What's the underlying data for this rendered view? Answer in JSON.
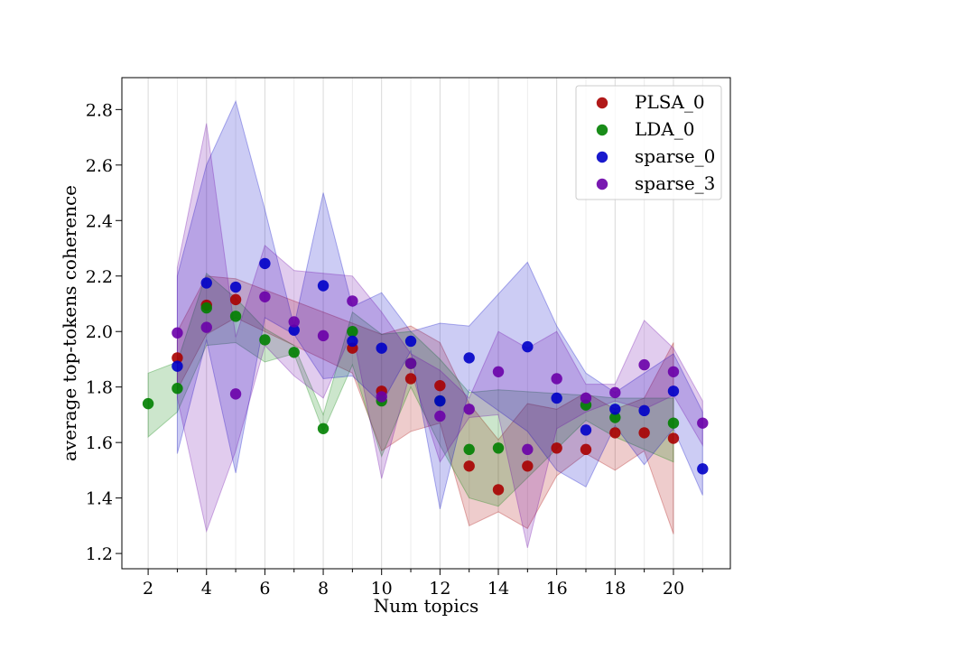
{
  "chart_data": {
    "type": "scatter",
    "title": "",
    "xlabel": "Num topics",
    "ylabel": "average top-tokens coherence",
    "xlim": [
      1.1,
      21.95
    ],
    "ylim": [
      1.145,
      2.915
    ],
    "xticks": [
      2,
      4,
      6,
      8,
      10,
      12,
      14,
      16,
      18,
      20
    ],
    "xtick_labels": [
      "2",
      "4",
      "6",
      "8",
      "10",
      "12",
      "14",
      "16",
      "18",
      "20"
    ],
    "xticks_minor": [
      3,
      5,
      7,
      9,
      11,
      13,
      15,
      17,
      19,
      21
    ],
    "yticks": [
      1.2,
      1.4,
      1.6,
      1.8,
      2.0,
      2.2,
      2.4,
      2.6,
      2.8
    ],
    "ytick_labels": [
      "1.2",
      "1.4",
      "1.6",
      "1.8",
      "2.0",
      "2.2",
      "2.4",
      "2.6",
      "2.8"
    ],
    "grid": "vertical",
    "legend_position": "top-right",
    "series": [
      {
        "name": "PLSA_0",
        "color": "#a80000",
        "x": [
          3,
          4,
          5,
          9,
          10,
          11,
          12,
          13,
          14,
          15,
          16,
          17,
          18,
          19,
          20
        ],
        "y": [
          1.905,
          2.095,
          2.115,
          1.94,
          1.785,
          1.83,
          1.805,
          1.515,
          1.43,
          1.515,
          1.58,
          1.575,
          1.635,
          1.635,
          1.615
        ],
        "band_upper": [
          2.0,
          2.2,
          2.19,
          2.03,
          1.99,
          2.02,
          1.96,
          1.74,
          1.61,
          1.74,
          1.72,
          1.78,
          1.72,
          1.76,
          1.96
        ],
        "band_lower": [
          1.79,
          1.99,
          2.05,
          1.85,
          1.57,
          1.64,
          1.67,
          1.3,
          1.35,
          1.29,
          1.48,
          1.56,
          1.5,
          1.57,
          1.27
        ]
      },
      {
        "name": "LDA_0",
        "color": "#008000",
        "x": [
          2,
          3,
          4,
          5,
          6,
          7,
          8,
          9,
          10,
          11,
          12,
          13,
          14,
          17,
          18,
          20
        ],
        "y": [
          1.74,
          1.795,
          2.085,
          2.055,
          1.97,
          1.925,
          1.65,
          2.0,
          1.75,
          1.885,
          1.75,
          1.575,
          1.58,
          1.735,
          1.69,
          1.67
        ],
        "band_upper": [
          1.85,
          1.89,
          2.21,
          2.12,
          2.01,
          1.95,
          1.7,
          2.07,
          1.99,
          2.0,
          1.9,
          1.78,
          1.79,
          1.77,
          1.76,
          1.76
        ],
        "band_lower": [
          1.62,
          1.71,
          1.95,
          1.96,
          1.89,
          1.92,
          1.64,
          1.88,
          1.55,
          1.8,
          1.59,
          1.4,
          1.37,
          1.68,
          1.62,
          1.53
        ]
      },
      {
        "name": "sparse_0",
        "color": "#0000c8",
        "x": [
          3,
          4,
          5,
          6,
          7,
          8,
          9,
          10,
          11,
          12,
          13,
          15,
          16,
          17,
          18,
          19,
          20,
          21
        ],
        "y": [
          1.875,
          2.175,
          2.16,
          2.245,
          2.005,
          2.165,
          1.965,
          1.94,
          1.965,
          1.75,
          1.905,
          1.945,
          1.76,
          1.645,
          1.72,
          1.715,
          1.785,
          1.505
        ],
        "band_upper": [
          2.2,
          2.6,
          2.83,
          2.44,
          2.02,
          2.5,
          2.09,
          2.14,
          2.0,
          2.03,
          2.02,
          2.25,
          2.02,
          1.85,
          1.78,
          1.85,
          1.92,
          1.71
        ],
        "band_lower": [
          1.56,
          1.97,
          1.49,
          2.05,
          1.99,
          1.83,
          1.84,
          1.74,
          1.93,
          1.36,
          1.79,
          1.64,
          1.5,
          1.44,
          1.66,
          1.52,
          1.65,
          1.41
        ]
      },
      {
        "name": "sparse_3",
        "color": "#6a00a8",
        "x": [
          3,
          4,
          5,
          6,
          7,
          8,
          9,
          10,
          11,
          12,
          13,
          14,
          15,
          16,
          17,
          18,
          19,
          20,
          21
        ],
        "y": [
          1.995,
          2.015,
          1.775,
          2.125,
          2.035,
          1.985,
          2.11,
          1.765,
          1.885,
          1.695,
          1.72,
          1.855,
          1.575,
          1.83,
          1.76,
          1.78,
          1.88,
          1.855,
          1.67
        ],
        "band_upper": [
          2.23,
          2.75,
          1.98,
          2.31,
          2.22,
          2.21,
          2.2,
          2.07,
          1.92,
          1.86,
          1.76,
          2.0,
          1.94,
          2.0,
          1.81,
          1.81,
          2.04,
          1.94,
          1.75
        ],
        "band_lower": [
          1.76,
          1.28,
          1.57,
          1.95,
          1.84,
          1.76,
          2.0,
          1.47,
          1.86,
          1.53,
          1.69,
          1.7,
          1.22,
          1.65,
          1.71,
          1.75,
          1.72,
          1.77,
          1.59
        ]
      }
    ]
  }
}
